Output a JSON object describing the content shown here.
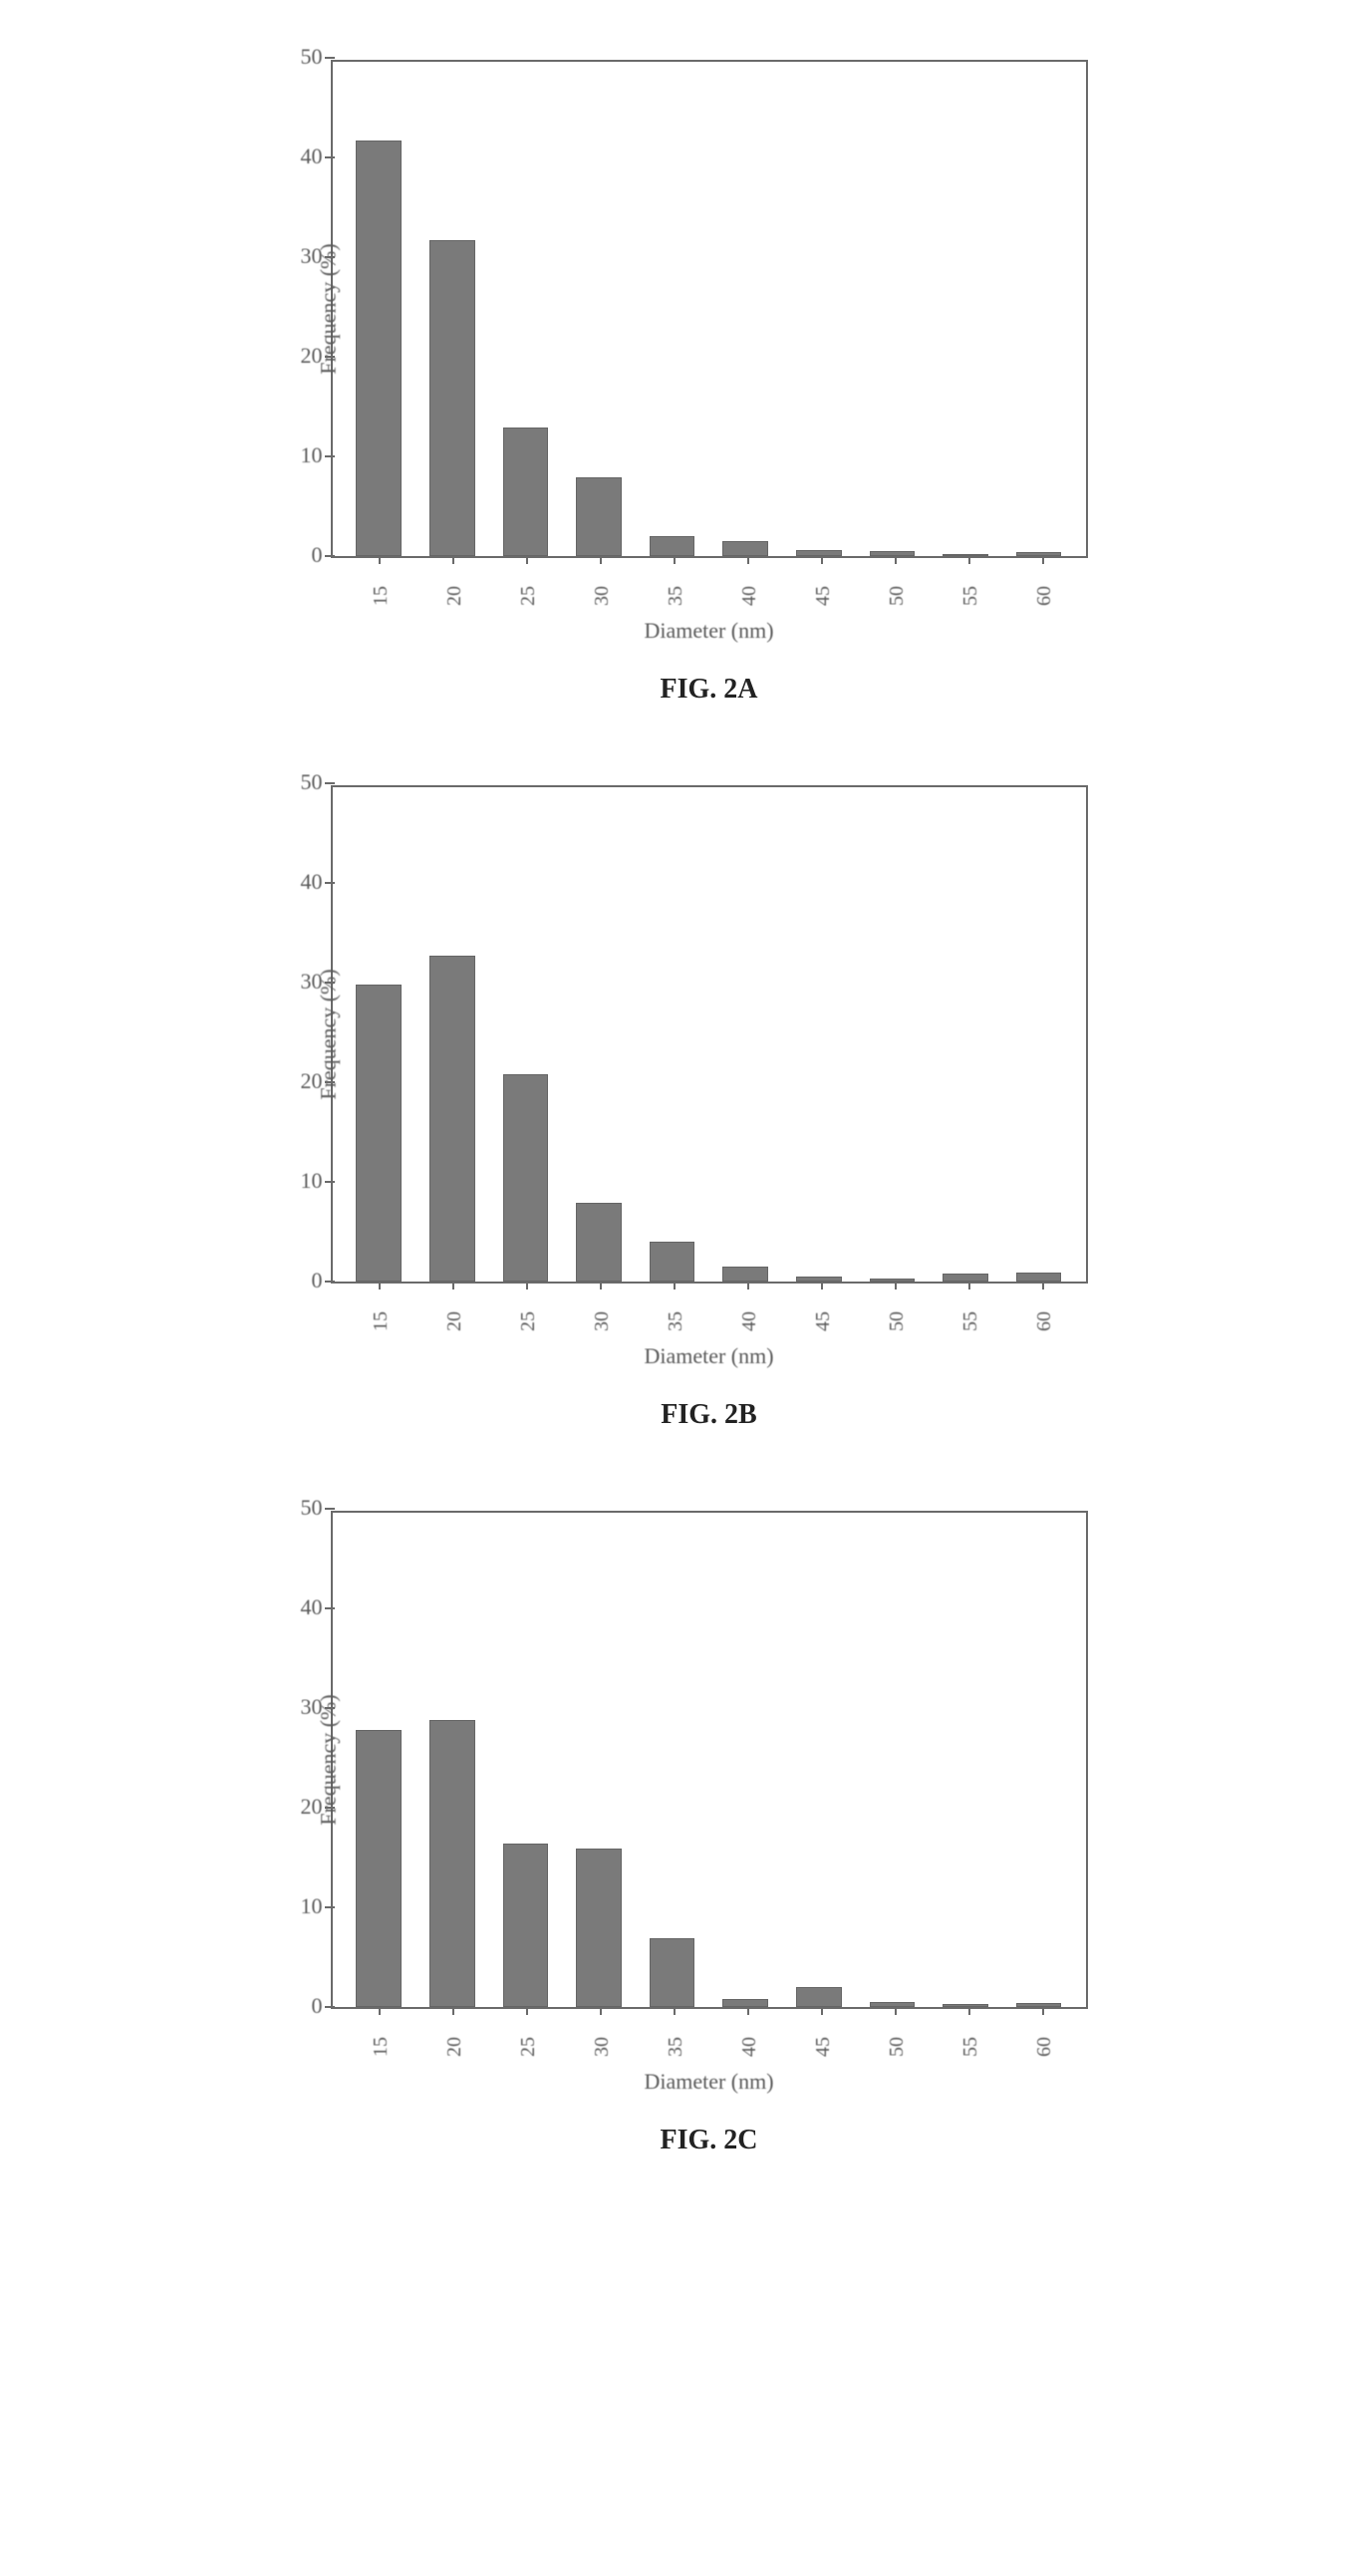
{
  "charts": [
    {
      "id": "fig2a",
      "type": "bar",
      "caption": "FIG. 2A",
      "ylabel": "Frequency (%)",
      "xlabel": "Diameter (nm)",
      "categories": [
        "15",
        "20",
        "25",
        "30",
        "35",
        "40",
        "45",
        "50",
        "55",
        "60"
      ],
      "values": [
        42,
        32,
        13,
        8,
        2,
        1.5,
        0.6,
        0.5,
        0.2,
        0.4
      ],
      "ylim": [
        0,
        50
      ],
      "ytick_step": 10,
      "bar_color": "#7a7a7a",
      "border_color": "#6a6a6a",
      "background_color": "#ffffff",
      "label_color": "#5a5a5a",
      "label_fontsize": 22,
      "tick_fontsize": 22,
      "caption_fontsize": 28,
      "bar_width_ratio": 0.62
    },
    {
      "id": "fig2b",
      "type": "bar",
      "caption": "FIG. 2B",
      "ylabel": "Frequency (%)",
      "xlabel": "Diameter (nm)",
      "categories": [
        "15",
        "20",
        "25",
        "30",
        "35",
        "40",
        "45",
        "50",
        "55",
        "60"
      ],
      "values": [
        30,
        33,
        21,
        8,
        4,
        1.5,
        0.5,
        0.3,
        0.8,
        0.9
      ],
      "ylim": [
        0,
        50
      ],
      "ytick_step": 10,
      "bar_color": "#7a7a7a",
      "border_color": "#6a6a6a",
      "background_color": "#ffffff",
      "label_color": "#5a5a5a",
      "label_fontsize": 22,
      "tick_fontsize": 22,
      "caption_fontsize": 28,
      "bar_width_ratio": 0.62
    },
    {
      "id": "fig2c",
      "type": "bar",
      "caption": "FIG. 2C",
      "ylabel": "Frequency (%)",
      "xlabel": "Diameter (nm)",
      "categories": [
        "15",
        "20",
        "25",
        "30",
        "35",
        "40",
        "45",
        "50",
        "55",
        "60"
      ],
      "values": [
        28,
        29,
        16.5,
        16,
        7,
        0.8,
        2,
        0.5,
        0.3,
        0.4
      ],
      "ylim": [
        0,
        50
      ],
      "ytick_step": 10,
      "bar_color": "#7a7a7a",
      "border_color": "#6a6a6a",
      "background_color": "#ffffff",
      "label_color": "#5a5a5a",
      "label_fontsize": 22,
      "tick_fontsize": 22,
      "caption_fontsize": 28,
      "bar_width_ratio": 0.62
    }
  ]
}
